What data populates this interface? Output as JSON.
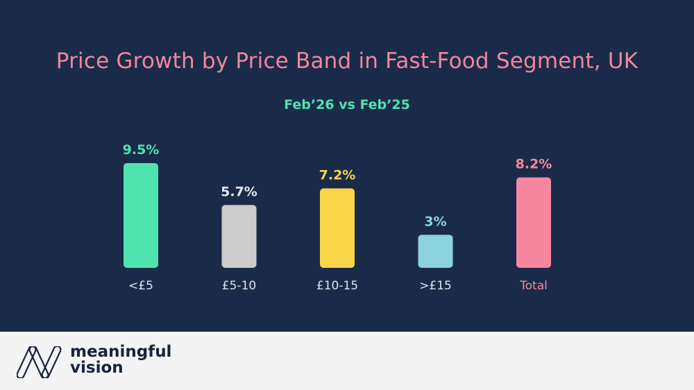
{
  "chart_data": {
    "type": "bar",
    "title": "Price Growth by Price Band in Fast-Food Segment, UK",
    "subtitle": "Feb’26 vs Feb’25",
    "categories": [
      "<£5",
      "£5-10",
      "£10-15",
      ">£15",
      "Total"
    ],
    "values": [
      9.5,
      5.7,
      7.2,
      3,
      8.2
    ],
    "data_labels": [
      "9.5%",
      "5.7%",
      "7.2%",
      "3%",
      "8.2%"
    ],
    "colors": [
      "#4fe3b0",
      "#cccccc",
      "#f9d447",
      "#8dd2df",
      "#f6879f"
    ],
    "label_colors": [
      "#4fe3b0",
      "#e6e8ee",
      "#f9d447",
      "#8dd2df",
      "#f6879f"
    ],
    "xlabel": "",
    "ylabel": "",
    "ylim": [
      0,
      10
    ],
    "grid": false,
    "axis_visible": false
  },
  "colors": {
    "background": "#1a2b49",
    "title": "#f2869f",
    "footer": "#f4f4f5"
  },
  "footer": {
    "logo_line1": "meaningful",
    "logo_line2": "vision"
  }
}
